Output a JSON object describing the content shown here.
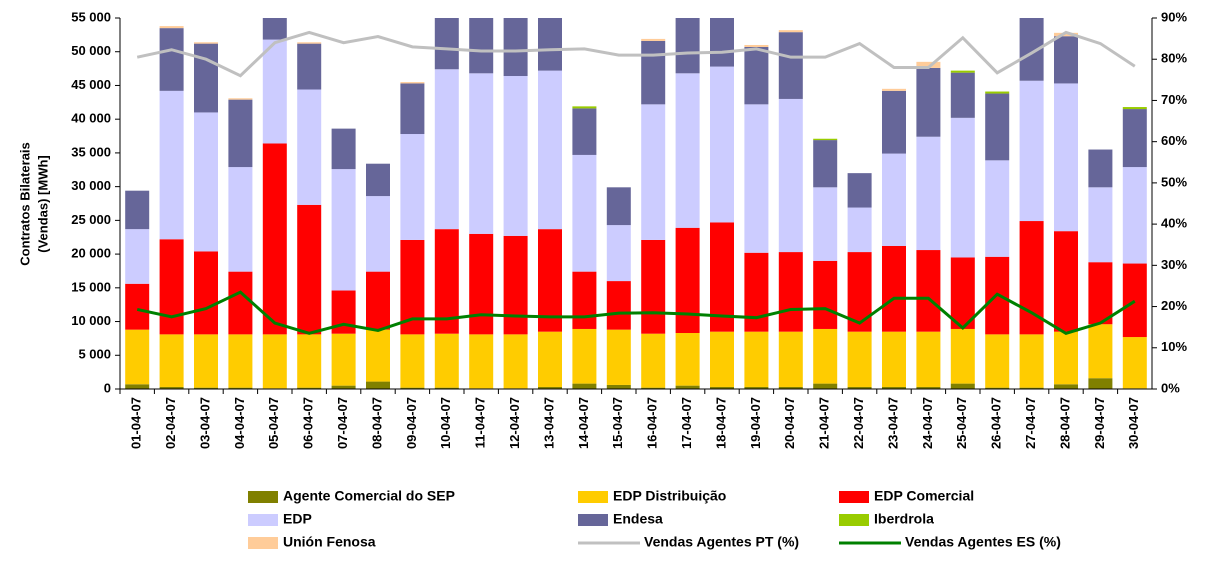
{
  "chart_data": {
    "type": "bar",
    "stacked": true,
    "y_label": [
      "Contratos Bilaterais",
      "(Vendas) [MWh]"
    ],
    "categories": [
      "01-04-07",
      "02-04-07",
      "03-04-07",
      "04-04-07",
      "05-04-07",
      "06-04-07",
      "07-04-07",
      "08-04-07",
      "09-04-07",
      "10-04-07",
      "11-04-07",
      "12-04-07",
      "13-04-07",
      "14-04-07",
      "15-04-07",
      "16-04-07",
      "17-04-07",
      "18-04-07",
      "19-04-07",
      "20-04-07",
      "21-04-07",
      "22-04-07",
      "23-04-07",
      "24-04-07",
      "25-04-07",
      "26-04-07",
      "27-04-07",
      "28-04-07",
      "29-04-07",
      "30-04-07"
    ],
    "series": [
      {
        "name": "Agente Comercial do SEP",
        "color": "#808000",
        "values": [
          700,
          300,
          200,
          200,
          100,
          200,
          500,
          1100,
          200,
          200,
          100,
          100,
          300,
          800,
          600,
          200,
          500,
          300,
          300,
          300,
          800,
          300,
          300,
          300,
          800,
          200,
          200,
          700,
          1600,
          100
        ]
      },
      {
        "name": "EDP Distribuição",
        "color": "#ffcc00",
        "values": [
          8100,
          7800,
          7900,
          7900,
          8000,
          7900,
          7700,
          7700,
          7900,
          8000,
          8000,
          8000,
          8200,
          8100,
          8200,
          8000,
          7800,
          8200,
          8200,
          8200,
          8100,
          8200,
          8200,
          8200,
          8100,
          7900,
          7900,
          7800,
          8000,
          7600
        ]
      },
      {
        "name": "EDP Comercial",
        "color": "#ff0000",
        "values": [
          6800,
          14100,
          12300,
          9300,
          28300,
          19200,
          6400,
          8600,
          14000,
          15500,
          14900,
          14600,
          15200,
          8500,
          7200,
          13900,
          15600,
          16200,
          11700,
          11800,
          10100,
          11800,
          12700,
          12100,
          10600,
          11500,
          16800,
          14900,
          9200,
          10900
        ]
      },
      {
        "name": "EDP",
        "color": "#ccccff",
        "values": [
          8100,
          22000,
          20600,
          15500,
          15400,
          17100,
          18000,
          11200,
          15700,
          23700,
          23800,
          23700,
          23500,
          17300,
          8300,
          20100,
          22900,
          23100,
          22000,
          22700,
          10900,
          6600,
          13700,
          16800,
          20700,
          14300,
          20800,
          21900,
          11100,
          14300
        ]
      },
      {
        "name": "Endesa",
        "color": "#666699",
        "values": [
          5700,
          9300,
          10200,
          10000,
          5200,
          6800,
          6000,
          4800,
          7500,
          10600,
          11200,
          10600,
          9800,
          6900,
          5600,
          9400,
          11200,
          9200,
          8500,
          9900,
          7000,
          5100,
          9300,
          10200,
          6700,
          9900,
          11300,
          7000,
          5600,
          8600
        ]
      },
      {
        "name": "Iberdrola",
        "color": "#99cc00",
        "values": [
          0,
          0,
          0,
          0,
          0,
          0,
          0,
          0,
          0,
          0,
          0,
          0,
          0,
          300,
          0,
          0,
          0,
          0,
          0,
          0,
          200,
          0,
          0,
          0,
          300,
          300,
          0,
          0,
          0,
          300
        ]
      },
      {
        "name": "Unión Fenosa",
        "color": "#ffcc99",
        "values": [
          0,
          300,
          200,
          200,
          0,
          200,
          0,
          0,
          200,
          0,
          0,
          0,
          0,
          0,
          0,
          300,
          0,
          0,
          300,
          300,
          0,
          0,
          300,
          900,
          0,
          0,
          0,
          500,
          0,
          0
        ]
      },
      {
        "name": "Vendas Agentes PT (%)",
        "color": "#c0c0c0",
        "type": "line",
        "axis": "y2",
        "values": [
          80.5,
          82.3,
          80,
          76,
          84,
          86.5,
          84,
          85.5,
          83,
          82.5,
          82,
          82,
          82.3,
          82.5,
          81,
          81,
          81.5,
          81.7,
          82.5,
          80.5,
          80.5,
          83.8,
          78,
          78,
          85.2,
          76.7,
          81.5,
          86.5,
          83.8,
          78.3
        ]
      },
      {
        "name": "Vendas Agentes ES (%)",
        "color": "#008000",
        "type": "line",
        "axis": "y2",
        "values": [
          19.3,
          17.5,
          19.5,
          23.5,
          16,
          13.5,
          15.7,
          14.2,
          17,
          17,
          18,
          17.7,
          17.5,
          17.5,
          18.4,
          18.5,
          18.2,
          17.7,
          17.3,
          19.3,
          19.5,
          16,
          22,
          22,
          14.8,
          23,
          18.5,
          13.5,
          16,
          21.3
        ]
      }
    ],
    "ylim": [
      0,
      55000
    ],
    "yticks": [
      0,
      {
        "value": 5000,
        "label": "5 000"
      },
      {
        "value": 10000,
        "label": "10 000"
      },
      {
        "value": 15000,
        "label": "15 000"
      },
      {
        "value": 20000,
        "label": "20 000"
      },
      {
        "value": 25000,
        "label": "25 000"
      },
      {
        "value": 30000,
        "label": "30 000"
      },
      {
        "value": 35000,
        "label": "35 000"
      },
      {
        "value": 40000,
        "label": "40 000"
      },
      {
        "value": 45000,
        "label": "45 000"
      },
      {
        "value": 50000,
        "label": "50 000"
      },
      {
        "value": 55000,
        "label": "55 000"
      }
    ],
    "y2lim": [
      0,
      90
    ],
    "y2ticks": [
      {
        "value": 0,
        "label": "0%"
      },
      {
        "value": 10,
        "label": "10%"
      },
      {
        "value": 20,
        "label": "20%"
      },
      {
        "value": 30,
        "label": "30%"
      },
      {
        "value": 40,
        "label": "40%"
      },
      {
        "value": 50,
        "label": "50%"
      },
      {
        "value": 60,
        "label": "60%"
      },
      {
        "value": 70,
        "label": "70%"
      },
      {
        "value": 80,
        "label": "80%"
      },
      {
        "value": 90,
        "label": "90%"
      }
    ],
    "grid": false,
    "legend": "bottom"
  }
}
